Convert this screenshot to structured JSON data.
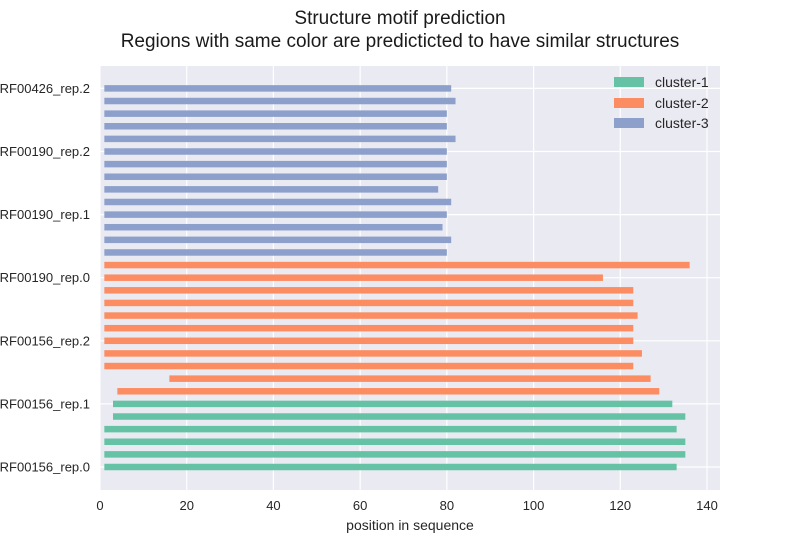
{
  "chart_data": {
    "type": "bar",
    "orientation": "horizontal",
    "title": "Structure motif prediction",
    "subtitle": "Regions with same color are predicticted to have similar structures",
    "xlabel": "position in sequence",
    "ylabel": "",
    "xlim": [
      0,
      143
    ],
    "xticks": [
      0,
      20,
      40,
      60,
      80,
      100,
      120,
      140
    ],
    "grid": true,
    "legend_position": "top-right",
    "ytick_labels": [
      {
        "row": 0,
        "label": "RF00156_rep.0"
      },
      {
        "row": 5,
        "label": "RF00156_rep.1"
      },
      {
        "row": 10,
        "label": "RF00156_rep.2"
      },
      {
        "row": 15,
        "label": "RF00190_rep.0"
      },
      {
        "row": 20,
        "label": "RF00190_rep.1"
      },
      {
        "row": 25,
        "label": "RF00190_rep.2"
      },
      {
        "row": 30,
        "label": "RF00426_rep.2"
      }
    ],
    "series": [
      {
        "name": "cluster-1",
        "color": "#66c2a5"
      },
      {
        "name": "cluster-2",
        "color": "#fc8d62"
      },
      {
        "name": "cluster-3",
        "color": "#8da0cb"
      }
    ],
    "bars": [
      {
        "row": 0,
        "start": 1,
        "end": 133,
        "cluster": "cluster-1"
      },
      {
        "row": 1,
        "start": 1,
        "end": 135,
        "cluster": "cluster-1"
      },
      {
        "row": 2,
        "start": 1,
        "end": 135,
        "cluster": "cluster-1"
      },
      {
        "row": 3,
        "start": 1,
        "end": 133,
        "cluster": "cluster-1"
      },
      {
        "row": 4,
        "start": 3,
        "end": 135,
        "cluster": "cluster-1"
      },
      {
        "row": 5,
        "start": 3,
        "end": 132,
        "cluster": "cluster-1"
      },
      {
        "row": 6,
        "start": 4,
        "end": 129,
        "cluster": "cluster-2"
      },
      {
        "row": 7,
        "start": 16,
        "end": 127,
        "cluster": "cluster-2"
      },
      {
        "row": 8,
        "start": 1,
        "end": 123,
        "cluster": "cluster-2"
      },
      {
        "row": 9,
        "start": 1,
        "end": 125,
        "cluster": "cluster-2"
      },
      {
        "row": 10,
        "start": 1,
        "end": 123,
        "cluster": "cluster-2"
      },
      {
        "row": 11,
        "start": 1,
        "end": 123,
        "cluster": "cluster-2"
      },
      {
        "row": 12,
        "start": 1,
        "end": 124,
        "cluster": "cluster-2"
      },
      {
        "row": 13,
        "start": 1,
        "end": 123,
        "cluster": "cluster-2"
      },
      {
        "row": 14,
        "start": 1,
        "end": 123,
        "cluster": "cluster-2"
      },
      {
        "row": 15,
        "start": 1,
        "end": 116,
        "cluster": "cluster-2"
      },
      {
        "row": 16,
        "start": 1,
        "end": 136,
        "cluster": "cluster-2"
      },
      {
        "row": 17,
        "start": 1,
        "end": 80,
        "cluster": "cluster-3"
      },
      {
        "row": 18,
        "start": 1,
        "end": 81,
        "cluster": "cluster-3"
      },
      {
        "row": 19,
        "start": 1,
        "end": 79,
        "cluster": "cluster-3"
      },
      {
        "row": 20,
        "start": 1,
        "end": 80,
        "cluster": "cluster-3"
      },
      {
        "row": 21,
        "start": 1,
        "end": 81,
        "cluster": "cluster-3"
      },
      {
        "row": 22,
        "start": 1,
        "end": 78,
        "cluster": "cluster-3"
      },
      {
        "row": 23,
        "start": 1,
        "end": 80,
        "cluster": "cluster-3"
      },
      {
        "row": 24,
        "start": 1,
        "end": 80,
        "cluster": "cluster-3"
      },
      {
        "row": 25,
        "start": 1,
        "end": 80,
        "cluster": "cluster-3"
      },
      {
        "row": 26,
        "start": 1,
        "end": 82,
        "cluster": "cluster-3"
      },
      {
        "row": 27,
        "start": 1,
        "end": 80,
        "cluster": "cluster-3"
      },
      {
        "row": 28,
        "start": 1,
        "end": 80,
        "cluster": "cluster-3"
      },
      {
        "row": 29,
        "start": 1,
        "end": 82,
        "cluster": "cluster-3"
      },
      {
        "row": 30,
        "start": 1,
        "end": 81,
        "cluster": "cluster-3"
      }
    ]
  }
}
